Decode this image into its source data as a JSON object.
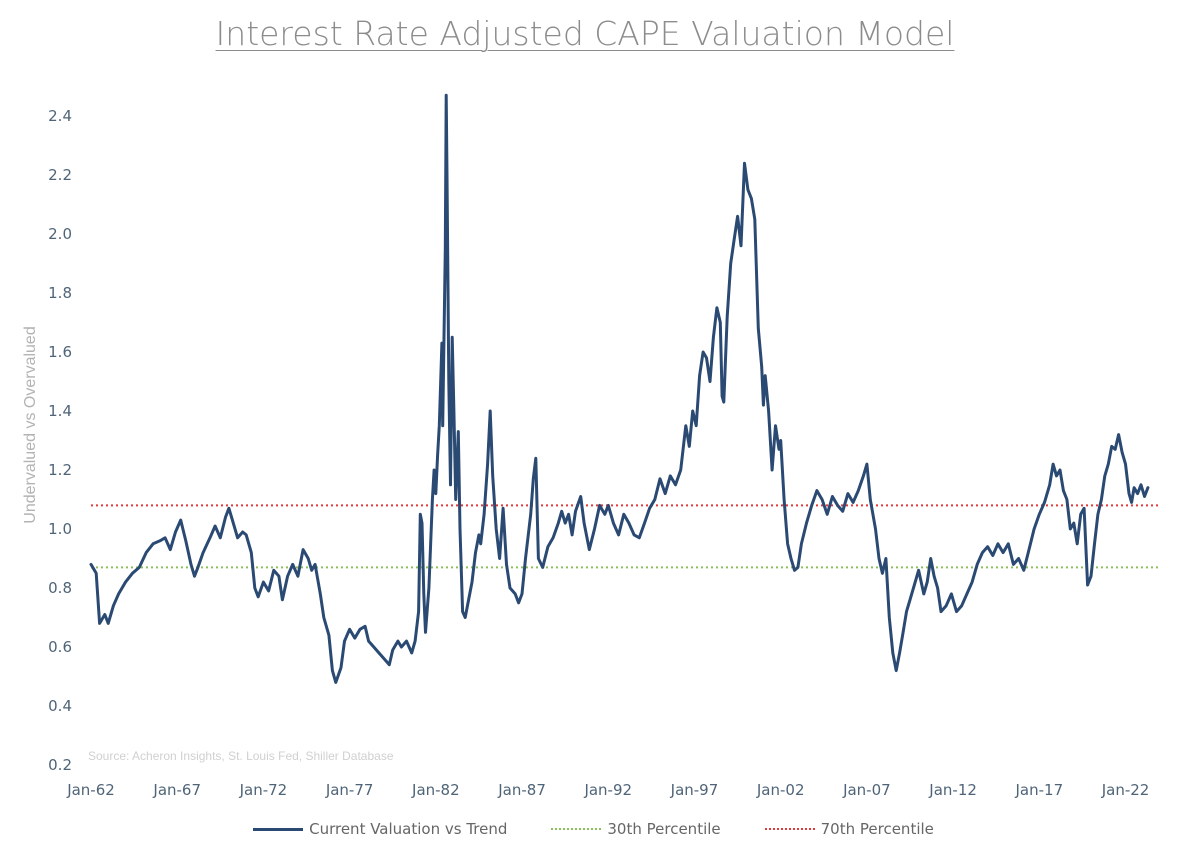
{
  "chart_data": {
    "type": "line",
    "title": "Interest Rate Adjusted CAPE Valuation Model",
    "ylabel": "Undervalued vs Overvalued",
    "xlabel": "",
    "source": "Source: Acheron Insights, St. Louis Fed, Shiller Database",
    "ylim": [
      0.2,
      2.4
    ],
    "yticks": [
      "0.2",
      "0.4",
      "0.6",
      "0.8",
      "1.0",
      "1.2",
      "1.4",
      "1.6",
      "1.8",
      "2.0",
      "2.2",
      "2.4"
    ],
    "xlim": [
      1962.0,
      2024.0
    ],
    "xticks": [
      {
        "label": "Jan-62",
        "x": 1962
      },
      {
        "label": "Jan-67",
        "x": 1967
      },
      {
        "label": "Jan-72",
        "x": 1972
      },
      {
        "label": "Jan-77",
        "x": 1977
      },
      {
        "label": "Jan-82",
        "x": 1982
      },
      {
        "label": "Jan-87",
        "x": 1987
      },
      {
        "label": "Jan-92",
        "x": 1992
      },
      {
        "label": "Jan-97",
        "x": 1997
      },
      {
        "label": "Jan-02",
        "x": 2002
      },
      {
        "label": "Jan-07",
        "x": 2007
      },
      {
        "label": "Jan-12",
        "x": 2012
      },
      {
        "label": "Jan-17",
        "x": 2017
      },
      {
        "label": "Jan-22",
        "x": 2022
      }
    ],
    "grid": false,
    "legend_position": "bottom",
    "series": [
      {
        "name": "Current Valuation vs Trend",
        "color": "#2b4a73",
        "style": "solid",
        "points": [
          [
            1962.0,
            0.88
          ],
          [
            1962.3,
            0.85
          ],
          [
            1962.5,
            0.68
          ],
          [
            1962.8,
            0.71
          ],
          [
            1963.0,
            0.68
          ],
          [
            1963.3,
            0.74
          ],
          [
            1963.6,
            0.78
          ],
          [
            1964.0,
            0.82
          ],
          [
            1964.4,
            0.85
          ],
          [
            1964.8,
            0.87
          ],
          [
            1965.2,
            0.92
          ],
          [
            1965.6,
            0.95
          ],
          [
            1966.0,
            0.96
          ],
          [
            1966.3,
            0.97
          ],
          [
            1966.6,
            0.93
          ],
          [
            1966.9,
            0.99
          ],
          [
            1967.2,
            1.03
          ],
          [
            1967.5,
            0.96
          ],
          [
            1967.8,
            0.88
          ],
          [
            1968.0,
            0.84
          ],
          [
            1968.2,
            0.87
          ],
          [
            1968.5,
            0.92
          ],
          [
            1968.9,
            0.97
          ],
          [
            1969.2,
            1.01
          ],
          [
            1969.5,
            0.97
          ],
          [
            1969.8,
            1.04
          ],
          [
            1970.0,
            1.07
          ],
          [
            1970.2,
            1.03
          ],
          [
            1970.5,
            0.97
          ],
          [
            1970.8,
            0.99
          ],
          [
            1971.0,
            0.98
          ],
          [
            1971.3,
            0.92
          ],
          [
            1971.5,
            0.8
          ],
          [
            1971.7,
            0.77
          ],
          [
            1972.0,
            0.82
          ],
          [
            1972.3,
            0.79
          ],
          [
            1972.6,
            0.86
          ],
          [
            1972.9,
            0.84
          ],
          [
            1973.1,
            0.76
          ],
          [
            1973.4,
            0.84
          ],
          [
            1973.7,
            0.88
          ],
          [
            1974.0,
            0.84
          ],
          [
            1974.3,
            0.93
          ],
          [
            1974.6,
            0.9
          ],
          [
            1974.8,
            0.86
          ],
          [
            1975.0,
            0.88
          ],
          [
            1975.3,
            0.78
          ],
          [
            1975.5,
            0.7
          ],
          [
            1975.8,
            0.64
          ],
          [
            1976.0,
            0.52
          ],
          [
            1976.2,
            0.48
          ],
          [
            1976.5,
            0.53
          ],
          [
            1976.7,
            0.62
          ],
          [
            1977.0,
            0.66
          ],
          [
            1977.3,
            0.63
          ],
          [
            1977.6,
            0.66
          ],
          [
            1977.9,
            0.67
          ],
          [
            1978.1,
            0.62
          ],
          [
            1978.4,
            0.6
          ],
          [
            1978.7,
            0.58
          ],
          [
            1979.0,
            0.56
          ],
          [
            1979.3,
            0.54
          ],
          [
            1979.5,
            0.59
          ],
          [
            1979.8,
            0.62
          ],
          [
            1980.0,
            0.6
          ],
          [
            1980.3,
            0.62
          ],
          [
            1980.6,
            0.58
          ],
          [
            1980.8,
            0.62
          ],
          [
            1981.0,
            0.72
          ],
          [
            1981.1,
            1.05
          ],
          [
            1981.2,
            1.02
          ],
          [
            1981.3,
            0.78
          ],
          [
            1981.4,
            0.65
          ],
          [
            1981.6,
            0.8
          ],
          [
            1981.8,
            1.1
          ],
          [
            1981.9,
            1.2
          ],
          [
            1982.0,
            1.12
          ],
          [
            1982.1,
            1.25
          ],
          [
            1982.2,
            1.35
          ],
          [
            1982.35,
            1.63
          ],
          [
            1982.4,
            1.35
          ],
          [
            1982.55,
            1.95
          ],
          [
            1982.6,
            2.47
          ],
          [
            1982.65,
            2.2
          ],
          [
            1982.75,
            1.5
          ],
          [
            1982.85,
            1.15
          ],
          [
            1982.95,
            1.65
          ],
          [
            1983.05,
            1.4
          ],
          [
            1983.15,
            1.1
          ],
          [
            1983.3,
            1.33
          ],
          [
            1983.4,
            1.0
          ],
          [
            1983.55,
            0.72
          ],
          [
            1983.7,
            0.7
          ],
          [
            1983.9,
            0.76
          ],
          [
            1984.1,
            0.82
          ],
          [
            1984.3,
            0.92
          ],
          [
            1984.5,
            0.98
          ],
          [
            1984.6,
            0.95
          ],
          [
            1984.8,
            1.05
          ],
          [
            1985.0,
            1.22
          ],
          [
            1985.15,
            1.4
          ],
          [
            1985.3,
            1.18
          ],
          [
            1985.5,
            1.0
          ],
          [
            1985.7,
            0.9
          ],
          [
            1985.9,
            1.07
          ],
          [
            1986.1,
            0.88
          ],
          [
            1986.3,
            0.8
          ],
          [
            1986.6,
            0.78
          ],
          [
            1986.8,
            0.75
          ],
          [
            1987.0,
            0.78
          ],
          [
            1987.2,
            0.9
          ],
          [
            1987.5,
            1.05
          ],
          [
            1987.65,
            1.17
          ],
          [
            1987.8,
            1.24
          ],
          [
            1987.95,
            0.9
          ],
          [
            1988.2,
            0.87
          ],
          [
            1988.5,
            0.94
          ],
          [
            1988.8,
            0.97
          ],
          [
            1989.1,
            1.02
          ],
          [
            1989.3,
            1.06
          ],
          [
            1989.5,
            1.02
          ],
          [
            1989.7,
            1.05
          ],
          [
            1989.9,
            0.98
          ],
          [
            1990.1,
            1.06
          ],
          [
            1990.4,
            1.11
          ],
          [
            1990.6,
            1.02
          ],
          [
            1990.9,
            0.93
          ],
          [
            1991.2,
            1.0
          ],
          [
            1991.5,
            1.08
          ],
          [
            1991.8,
            1.05
          ],
          [
            1992.0,
            1.08
          ],
          [
            1992.3,
            1.02
          ],
          [
            1992.6,
            0.98
          ],
          [
            1992.9,
            1.05
          ],
          [
            1993.2,
            1.02
          ],
          [
            1993.5,
            0.98
          ],
          [
            1993.8,
            0.97
          ],
          [
            1994.1,
            1.02
          ],
          [
            1994.4,
            1.07
          ],
          [
            1994.7,
            1.1
          ],
          [
            1995.0,
            1.17
          ],
          [
            1995.3,
            1.12
          ],
          [
            1995.6,
            1.18
          ],
          [
            1995.9,
            1.15
          ],
          [
            1996.2,
            1.2
          ],
          [
            1996.5,
            1.35
          ],
          [
            1996.7,
            1.28
          ],
          [
            1996.9,
            1.4
          ],
          [
            1997.1,
            1.35
          ],
          [
            1997.3,
            1.52
          ],
          [
            1997.5,
            1.6
          ],
          [
            1997.7,
            1.58
          ],
          [
            1997.9,
            1.5
          ],
          [
            1998.1,
            1.65
          ],
          [
            1998.3,
            1.75
          ],
          [
            1998.5,
            1.7
          ],
          [
            1998.6,
            1.45
          ],
          [
            1998.7,
            1.43
          ],
          [
            1998.9,
            1.72
          ],
          [
            1999.1,
            1.9
          ],
          [
            1999.3,
            1.98
          ],
          [
            1999.5,
            2.06
          ],
          [
            1999.7,
            1.96
          ],
          [
            1999.9,
            2.24
          ],
          [
            2000.1,
            2.15
          ],
          [
            2000.3,
            2.12
          ],
          [
            2000.5,
            2.05
          ],
          [
            2000.7,
            1.68
          ],
          [
            2000.9,
            1.55
          ],
          [
            2001.0,
            1.42
          ],
          [
            2001.1,
            1.52
          ],
          [
            2001.3,
            1.4
          ],
          [
            2001.5,
            1.2
          ],
          [
            2001.7,
            1.35
          ],
          [
            2001.9,
            1.27
          ],
          [
            2002.0,
            1.3
          ],
          [
            2002.2,
            1.1
          ],
          [
            2002.4,
            0.95
          ],
          [
            2002.6,
            0.9
          ],
          [
            2002.8,
            0.86
          ],
          [
            2003.0,
            0.87
          ],
          [
            2003.2,
            0.95
          ],
          [
            2003.5,
            1.02
          ],
          [
            2003.8,
            1.08
          ],
          [
            2004.1,
            1.13
          ],
          [
            2004.4,
            1.1
          ],
          [
            2004.7,
            1.05
          ],
          [
            2005.0,
            1.11
          ],
          [
            2005.3,
            1.08
          ],
          [
            2005.6,
            1.06
          ],
          [
            2005.9,
            1.12
          ],
          [
            2006.2,
            1.09
          ],
          [
            2006.5,
            1.13
          ],
          [
            2006.8,
            1.18
          ],
          [
            2007.0,
            1.22
          ],
          [
            2007.2,
            1.1
          ],
          [
            2007.5,
            1.0
          ],
          [
            2007.7,
            0.9
          ],
          [
            2007.9,
            0.85
          ],
          [
            2008.1,
            0.9
          ],
          [
            2008.3,
            0.7
          ],
          [
            2008.5,
            0.58
          ],
          [
            2008.7,
            0.52
          ],
          [
            2008.9,
            0.58
          ],
          [
            2009.1,
            0.65
          ],
          [
            2009.3,
            0.72
          ],
          [
            2009.5,
            0.76
          ],
          [
            2009.8,
            0.82
          ],
          [
            2010.0,
            0.86
          ],
          [
            2010.3,
            0.78
          ],
          [
            2010.5,
            0.82
          ],
          [
            2010.7,
            0.9
          ],
          [
            2010.9,
            0.84
          ],
          [
            2011.1,
            0.8
          ],
          [
            2011.3,
            0.72
          ],
          [
            2011.6,
            0.74
          ],
          [
            2011.9,
            0.78
          ],
          [
            2012.2,
            0.72
          ],
          [
            2012.5,
            0.74
          ],
          [
            2012.8,
            0.78
          ],
          [
            2013.1,
            0.82
          ],
          [
            2013.4,
            0.88
          ],
          [
            2013.7,
            0.92
          ],
          [
            2014.0,
            0.94
          ],
          [
            2014.3,
            0.91
          ],
          [
            2014.6,
            0.95
          ],
          [
            2014.9,
            0.92
          ],
          [
            2015.2,
            0.95
          ],
          [
            2015.5,
            0.88
          ],
          [
            2015.8,
            0.9
          ],
          [
            2016.1,
            0.86
          ],
          [
            2016.4,
            0.93
          ],
          [
            2016.7,
            1.0
          ],
          [
            2017.0,
            1.05
          ],
          [
            2017.3,
            1.09
          ],
          [
            2017.6,
            1.15
          ],
          [
            2017.8,
            1.22
          ],
          [
            2018.0,
            1.18
          ],
          [
            2018.2,
            1.2
          ],
          [
            2018.4,
            1.13
          ],
          [
            2018.6,
            1.1
          ],
          [
            2018.8,
            1.0
          ],
          [
            2019.0,
            1.02
          ],
          [
            2019.2,
            0.95
          ],
          [
            2019.4,
            1.05
          ],
          [
            2019.6,
            1.07
          ],
          [
            2019.8,
            0.81
          ],
          [
            2020.0,
            0.84
          ],
          [
            2020.2,
            0.95
          ],
          [
            2020.4,
            1.05
          ],
          [
            2020.6,
            1.1
          ],
          [
            2020.8,
            1.18
          ],
          [
            2021.0,
            1.22
          ],
          [
            2021.2,
            1.28
          ],
          [
            2021.4,
            1.27
          ],
          [
            2021.6,
            1.32
          ],
          [
            2021.8,
            1.26
          ],
          [
            2022.0,
            1.22
          ],
          [
            2022.2,
            1.12
          ],
          [
            2022.35,
            1.09
          ],
          [
            2022.5,
            1.14
          ],
          [
            2022.7,
            1.12
          ],
          [
            2022.9,
            1.15
          ],
          [
            2023.1,
            1.11
          ],
          [
            2023.3,
            1.14
          ]
        ]
      },
      {
        "name": "30th Percentile",
        "color": "#8cbf5a",
        "style": "dotted",
        "value": 0.87
      },
      {
        "name": "70th Percentile",
        "color": "#e03a3a",
        "style": "dotted",
        "value": 1.08
      }
    ]
  }
}
